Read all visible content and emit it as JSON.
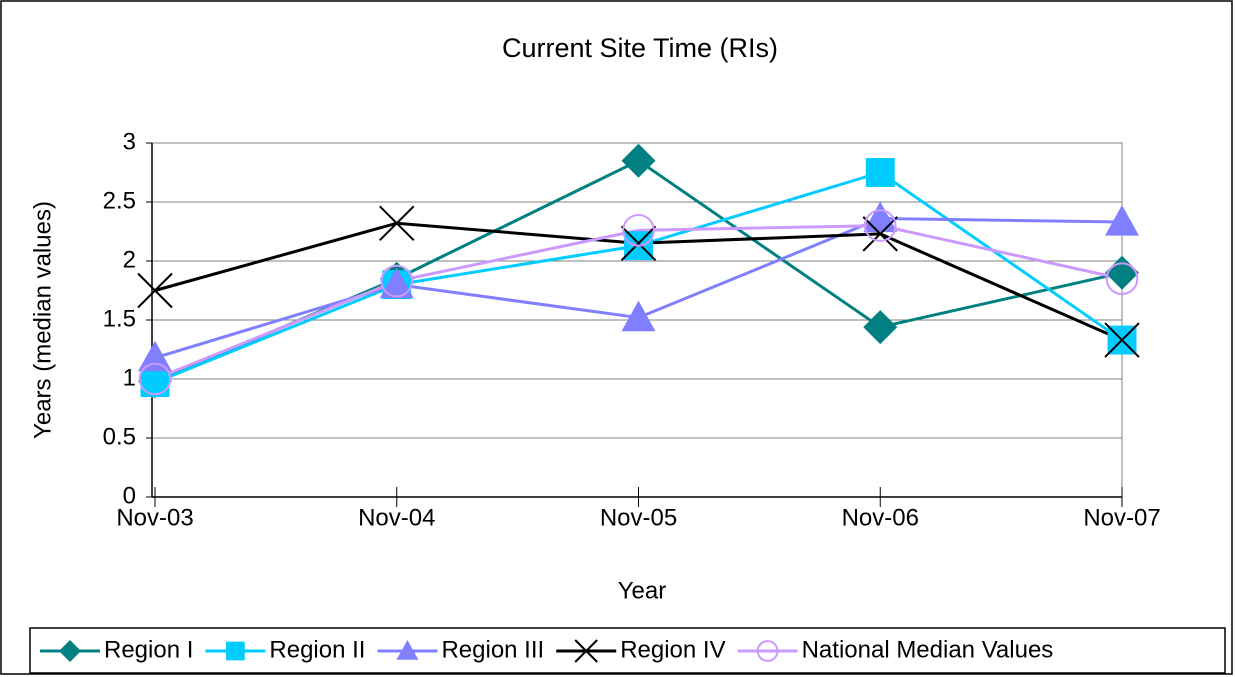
{
  "chart_data": {
    "type": "line",
    "title": "Current Site Time (RIs)",
    "x_label": "Year",
    "y_label": "Years (median values)",
    "categories": [
      "Nov-03",
      "Nov-04",
      "Nov-05",
      "Nov-06",
      "Nov-07"
    ],
    "series": [
      {
        "name": "Region I",
        "color": "#008080",
        "marker": "diamond",
        "values": [
          0.98,
          1.85,
          2.85,
          1.44,
          1.9
        ]
      },
      {
        "name": "Region II",
        "color": "#00ccff",
        "marker": "square",
        "values": [
          0.97,
          1.8,
          2.13,
          2.75,
          1.33
        ]
      },
      {
        "name": "Region III",
        "color": "#8080ff",
        "marker": "triangle",
        "values": [
          1.18,
          1.8,
          1.52,
          2.36,
          2.33
        ]
      },
      {
        "name": "Region IV",
        "color": "#000000",
        "marker": "x",
        "values": [
          1.75,
          2.32,
          2.15,
          2.23,
          1.33
        ]
      },
      {
        "name": "National Median Values",
        "color": "#cc99ff",
        "marker": "circle",
        "values": [
          1.0,
          1.83,
          2.26,
          2.3,
          1.85
        ]
      }
    ],
    "ylim": [
      0,
      3
    ],
    "yticks": [
      0,
      0.5,
      1,
      1.5,
      2,
      2.5,
      3
    ],
    "grid": true,
    "legend": "bottom"
  }
}
